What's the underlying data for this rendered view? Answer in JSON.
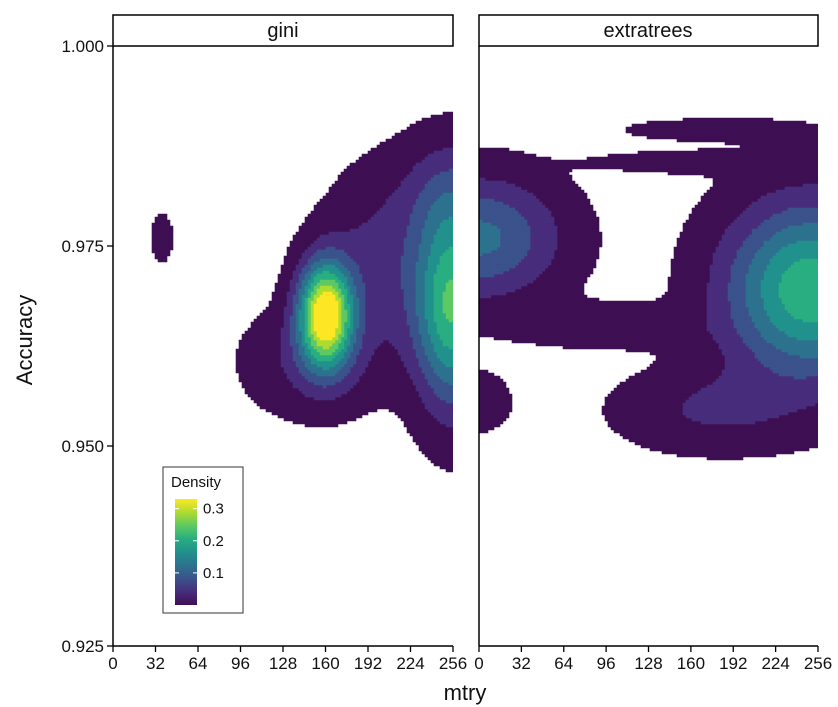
{
  "chart_data": {
    "type": "density2d",
    "xlabel": "mtry",
    "ylabel": "Accuracy",
    "xlim": [
      0,
      256
    ],
    "ylim": [
      0.925,
      1.0
    ],
    "x_ticks": [
      0,
      32,
      64,
      96,
      128,
      160,
      192,
      224,
      256
    ],
    "x_tick_labels": [
      "0",
      "32",
      "64",
      "96",
      "128",
      "160",
      "192",
      "224",
      "256"
    ],
    "y_ticks": [
      0.925,
      0.95,
      0.975,
      1.0
    ],
    "y_tick_labels": [
      "0.925",
      "0.950",
      "0.975",
      "1.000"
    ],
    "legend": {
      "title": "Density",
      "placement": "inside-bottom-left",
      "range": [
        0,
        0.33
      ],
      "ticks": [
        0.1,
        0.2,
        0.3
      ],
      "tick_labels": [
        "0.1",
        "0.2",
        "0.3"
      ],
      "colors": [
        "#3f0f53",
        "#472d7b",
        "#3b528b",
        "#2c728e",
        "#21918c",
        "#28ae80",
        "#5ec962",
        "#addc30",
        "#fde725"
      ]
    },
    "panels": [
      {
        "name": "gini",
        "blobs": [
          {
            "x": 160,
            "y": 0.9665,
            "sx": 14,
            "sy": 0.0045,
            "w": 0.33
          },
          {
            "x": 256,
            "y": 0.9675,
            "sx": 20,
            "sy": 0.0085,
            "w": 0.23
          },
          {
            "x": 200,
            "y": 0.9725,
            "sx": 28,
            "sy": 0.0075,
            "w": 0.06
          },
          {
            "x": 256,
            "y": 0.9815,
            "sx": 28,
            "sy": 0.005,
            "w": 0.06
          },
          {
            "x": 150,
            "y": 0.9605,
            "sx": 34,
            "sy": 0.0045,
            "w": 0.05
          },
          {
            "x": 37,
            "y": 0.976,
            "sx": 6,
            "sy": 0.0022,
            "w": 0.03
          }
        ]
      },
      {
        "name": "extratrees",
        "blobs": [
          {
            "x": 250,
            "y": 0.9695,
            "sx": 44,
            "sy": 0.0075,
            "w": 0.22
          },
          {
            "x": 0,
            "y": 0.976,
            "sx": 42,
            "sy": 0.0052,
            "w": 0.13
          },
          {
            "x": 175,
            "y": 0.9545,
            "sx": 48,
            "sy": 0.0035,
            "w": 0.05
          },
          {
            "x": 95,
            "y": 0.965,
            "sx": 45,
            "sy": 0.0018,
            "w": 0.04
          },
          {
            "x": 0,
            "y": 0.9555,
            "sx": 18,
            "sy": 0.0028,
            "w": 0.03
          },
          {
            "x": 180,
            "y": 0.9895,
            "sx": 45,
            "sy": 0.0009,
            "w": 0.04
          },
          {
            "x": 165,
            "y": 0.9855,
            "sx": 50,
            "sy": 0.0009,
            "w": 0.04
          }
        ]
      }
    ]
  }
}
